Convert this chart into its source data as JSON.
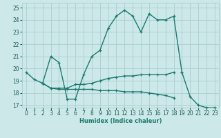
{
  "title": "",
  "xlabel": "Humidex (Indice chaleur)",
  "ylabel": "",
  "background_color": "#cce8e8",
  "grid_color": "#aacece",
  "line_color": "#1a7a6e",
  "xlim": [
    -0.5,
    23.5
  ],
  "ylim": [
    16.8,
    25.4
  ],
  "yticks": [
    17,
    18,
    19,
    20,
    21,
    22,
    23,
    24,
    25
  ],
  "xticks": [
    0,
    1,
    2,
    3,
    4,
    5,
    6,
    7,
    8,
    9,
    10,
    11,
    12,
    13,
    14,
    15,
    16,
    17,
    18,
    19,
    20,
    21,
    22,
    23
  ],
  "line1_y": [
    19.7,
    19.1,
    18.8,
    21.0,
    20.5,
    17.5,
    17.5,
    19.5,
    21.0,
    21.5,
    23.3,
    24.3,
    24.8,
    24.3,
    23.0,
    24.5,
    24.0,
    24.0,
    24.3,
    19.7,
    null,
    null,
    null,
    null
  ],
  "line2_y": [
    null,
    null,
    18.8,
    18.4,
    18.4,
    18.4,
    18.7,
    18.7,
    18.8,
    19.0,
    19.2,
    19.3,
    19.4,
    19.4,
    19.5,
    19.5,
    19.5,
    19.5,
    19.7,
    null,
    null,
    null,
    null,
    null
  ],
  "line3_y": [
    null,
    null,
    18.8,
    18.4,
    18.3,
    18.3,
    18.3,
    18.3,
    18.3,
    18.2,
    18.2,
    18.2,
    18.1,
    18.1,
    18.1,
    18.0,
    17.9,
    17.8,
    17.6,
    null,
    null,
    null,
    null,
    null
  ],
  "line4_y": [
    null,
    null,
    null,
    null,
    null,
    null,
    null,
    null,
    null,
    null,
    null,
    null,
    null,
    null,
    null,
    null,
    null,
    null,
    null,
    19.7,
    17.7,
    17.0,
    16.8,
    16.8
  ]
}
